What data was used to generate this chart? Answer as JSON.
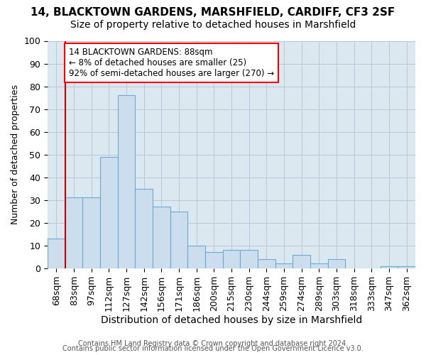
{
  "title1": "14, BLACKTOWN GARDENS, MARSHFIELD, CARDIFF, CF3 2SF",
  "title2": "Size of property relative to detached houses in Marshfield",
  "xlabel": "Distribution of detached houses by size in Marshfield",
  "ylabel": "Number of detached properties",
  "categories": [
    "68sqm",
    "83sqm",
    "97sqm",
    "112sqm",
    "127sqm",
    "142sqm",
    "156sqm",
    "171sqm",
    "186sqm",
    "200sqm",
    "215sqm",
    "230sqm",
    "244sqm",
    "259sqm",
    "274sqm",
    "289sqm",
    "303sqm",
    "318sqm",
    "333sqm",
    "347sqm",
    "362sqm"
  ],
  "values": [
    13,
    31,
    31,
    49,
    76,
    35,
    27,
    25,
    10,
    7,
    8,
    8,
    4,
    2,
    6,
    2,
    4,
    0,
    0,
    1,
    1
  ],
  "bar_color": "#ccdded",
  "bar_edge_color": "#6aaad4",
  "bar_linewidth": 0.8,
  "red_line_index": 1,
  "annotation_text": "14 BLACKTOWN GARDENS: 88sqm\n← 8% of detached houses are smaller (25)\n92% of semi-detached houses are larger (270) →",
  "annotation_box_color": "white",
  "annotation_box_edge": "red",
  "red_line_color": "#cc0000",
  "grid_color": "#b8c8d8",
  "bg_color": "#dce8f0",
  "ylim": [
    0,
    100
  ],
  "yticks": [
    0,
    10,
    20,
    30,
    40,
    50,
    60,
    70,
    80,
    90,
    100
  ],
  "footer1": "Contains HM Land Registry data © Crown copyright and database right 2024.",
  "footer2": "Contains public sector information licensed under the Open Government Licence v3.0.",
  "title1_fontsize": 11,
  "title2_fontsize": 10,
  "xlabel_fontsize": 10,
  "ylabel_fontsize": 9,
  "tick_fontsize": 9,
  "footer_fontsize": 7
}
